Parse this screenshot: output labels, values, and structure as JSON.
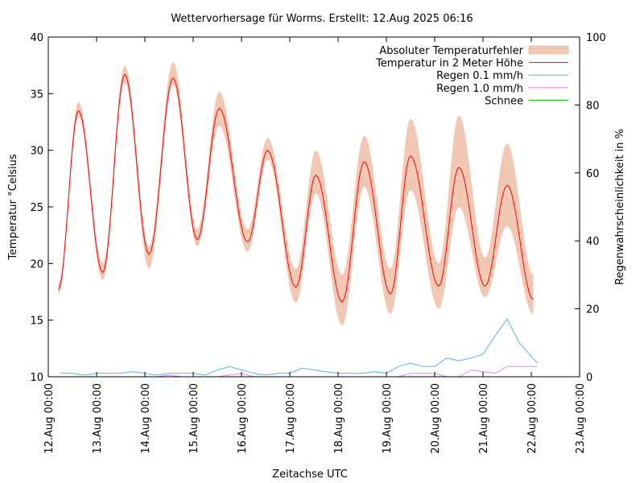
{
  "chart_data": {
    "type": "line",
    "title": "Wettervorhersage für Worms. Erstellt: 12.Aug 2025 06:16",
    "xlabel": "Zeitachse UTC",
    "ylabel": "Temperatur °Celsius",
    "y2label": "Regenwahrscheinlichkeit in %",
    "xlim": [
      "2025-08-12 00:00",
      "2025-08-23 00:00"
    ],
    "ylim": [
      10,
      40
    ],
    "y2lim": [
      0,
      100
    ],
    "grid": false,
    "legend_position": "top-right",
    "x_tick_labels": [
      "12.Aug 00:00",
      "13.Aug 00:00",
      "14.Aug 00:00",
      "15.Aug 00:00",
      "16.Aug 00:00",
      "17.Aug 00:00",
      "18.Aug 00:00",
      "19.Aug 00:00",
      "20.Aug 00:00",
      "21.Aug 00:00",
      "22.Aug 00:00",
      "23.Aug 00:00"
    ],
    "y_tick_labels": [
      "10",
      "15",
      "20",
      "25",
      "30",
      "35",
      "40"
    ],
    "y2_tick_labels": [
      "0",
      "20",
      "40",
      "60",
      "80",
      "100"
    ],
    "colors": {
      "band": "#f0c8b4",
      "temperature": "#ff0000",
      "rain01": "#56b4e9",
      "rain10": "#ee82ee",
      "snow": "#00c000"
    },
    "legend": [
      "Absoluter Temperaturfehler",
      "Temperatur in 2 Meter Höhe",
      "Regen 0.1 mm/h",
      "Regen 1.0 mm/h",
      "Schnee"
    ],
    "temperature": {
      "x": [
        "2025-08-12 05:00",
        "2025-08-12 15:00",
        "2025-08-13 03:00",
        "2025-08-13 14:00",
        "2025-08-14 02:00",
        "2025-08-14 14:00",
        "2025-08-15 02:00",
        "2025-08-15 13:00",
        "2025-08-16 03:00",
        "2025-08-16 13:00",
        "2025-08-17 03:00",
        "2025-08-17 13:00",
        "2025-08-18 02:00",
        "2025-08-18 13:00",
        "2025-08-19 02:00",
        "2025-08-19 12:00",
        "2025-08-20 02:00",
        "2025-08-20 12:00",
        "2025-08-21 01:00",
        "2025-08-21 12:00",
        "2025-08-22 01:00"
      ],
      "values": [
        17.7,
        33.5,
        19.2,
        36.7,
        20.8,
        36.4,
        22.1,
        33.7,
        21.9,
        30.0,
        17.9,
        27.8,
        16.6,
        29.0,
        17.3,
        29.5,
        18.0,
        28.5,
        18.0,
        26.9,
        16.8
      ],
      "error_low": [
        17.2,
        33.0,
        18.5,
        36.0,
        19.5,
        35.8,
        21.5,
        32.2,
        21.0,
        29.2,
        16.5,
        26.2,
        14.5,
        26.8,
        15.5,
        26.5,
        16.0,
        25.0,
        17.0,
        23.3,
        15.5
      ],
      "error_high": [
        18.3,
        34.3,
        20.0,
        37.5,
        21.5,
        37.8,
        23.0,
        35.2,
        23.0,
        31.1,
        19.5,
        30.0,
        19.0,
        31.3,
        19.5,
        32.8,
        20.0,
        33.1,
        20.5,
        30.6,
        19.0
      ]
    },
    "rain": {
      "x": [
        "2025-08-12 06:00",
        "2025-08-12 12:00",
        "2025-08-12 18:00",
        "2025-08-13 00:00",
        "2025-08-13 06:00",
        "2025-08-13 12:00",
        "2025-08-13 18:00",
        "2025-08-14 00:00",
        "2025-08-14 06:00",
        "2025-08-14 12:00",
        "2025-08-14 18:00",
        "2025-08-15 00:00",
        "2025-08-15 06:00",
        "2025-08-15 12:00",
        "2025-08-15 18:00",
        "2025-08-16 00:00",
        "2025-08-16 06:00",
        "2025-08-16 12:00",
        "2025-08-16 18:00",
        "2025-08-17 00:00",
        "2025-08-17 06:00",
        "2025-08-17 12:00",
        "2025-08-17 18:00",
        "2025-08-18 00:00",
        "2025-08-18 06:00",
        "2025-08-18 12:00",
        "2025-08-18 18:00",
        "2025-08-19 00:00",
        "2025-08-19 06:00",
        "2025-08-19 12:00",
        "2025-08-19 18:00",
        "2025-08-20 00:00",
        "2025-08-20 06:00",
        "2025-08-20 12:00",
        "2025-08-20 18:00",
        "2025-08-21 00:00",
        "2025-08-21 06:00",
        "2025-08-21 12:00",
        "2025-08-21 18:00",
        "2025-08-22 00:00",
        "2025-08-22 03:00"
      ],
      "rain_0_1": [
        1,
        1,
        0.5,
        1,
        1,
        1,
        1.5,
        1,
        0.5,
        1,
        1,
        1,
        0.5,
        2,
        3,
        2,
        1,
        0.5,
        1,
        1,
        2.5,
        2,
        1.5,
        1,
        1,
        1,
        1.5,
        1,
        3,
        4,
        3,
        3,
        5.5,
        4.7,
        5.5,
        6.6,
        12,
        17,
        10,
        6,
        4
      ],
      "rain_1_0": [
        0,
        0,
        0,
        0,
        0,
        0,
        0,
        0,
        0,
        0.5,
        0,
        0,
        0,
        0,
        0.5,
        1,
        0,
        0,
        0,
        0,
        0,
        0,
        0,
        0,
        0,
        0,
        0,
        0,
        0,
        1,
        1,
        1,
        0,
        0,
        2,
        1.5,
        1,
        3,
        3,
        3,
        3
      ],
      "snow": [
        0,
        0,
        0,
        0,
        0,
        0,
        0,
        0,
        0,
        0,
        0,
        0,
        0,
        0,
        0,
        0,
        0,
        0,
        0,
        0,
        0,
        0,
        0,
        0,
        0,
        0,
        0,
        0,
        0,
        0,
        0,
        0,
        0,
        0,
        0,
        0,
        0,
        0,
        0,
        0,
        0
      ]
    }
  }
}
